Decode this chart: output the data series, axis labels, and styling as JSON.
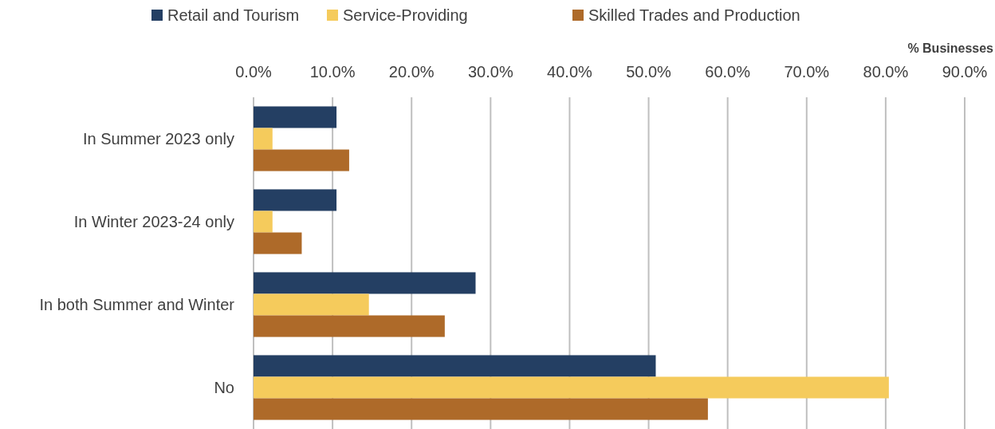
{
  "chart_data": {
    "type": "bar",
    "orientation": "horizontal",
    "xlabel": "% Businesses",
    "categories": [
      "In Summer 2023 only",
      "In Winter 2023-24 only",
      "In both Summer and Winter",
      "No"
    ],
    "series": [
      {
        "name": "Retail and Tourism",
        "color": "#243f63",
        "values": [
          10.5,
          10.5,
          28.1,
          50.9
        ]
      },
      {
        "name": "Service-Providing",
        "color": "#f5cb5c",
        "values": [
          2.4,
          2.4,
          14.6,
          80.4
        ]
      },
      {
        "name": "Skilled Trades and Production",
        "color": "#ae6a29",
        "values": [
          12.1,
          6.1,
          24.2,
          57.5
        ]
      }
    ],
    "xlim": [
      0,
      90
    ],
    "xticks": [
      {
        "value": 0,
        "label": "0.0%"
      },
      {
        "value": 10,
        "label": "10.0%"
      },
      {
        "value": 20,
        "label": "20.0%"
      },
      {
        "value": 30,
        "label": "30.0%"
      },
      {
        "value": 40,
        "label": "40.0%"
      },
      {
        "value": 50,
        "label": "50.0%"
      },
      {
        "value": 60,
        "label": "60.0%"
      },
      {
        "value": 70,
        "label": "70.0%"
      },
      {
        "value": 80,
        "label": "80.0%"
      },
      {
        "value": 90,
        "label": "90.0%"
      }
    ],
    "grid": "x",
    "legend": "top"
  }
}
